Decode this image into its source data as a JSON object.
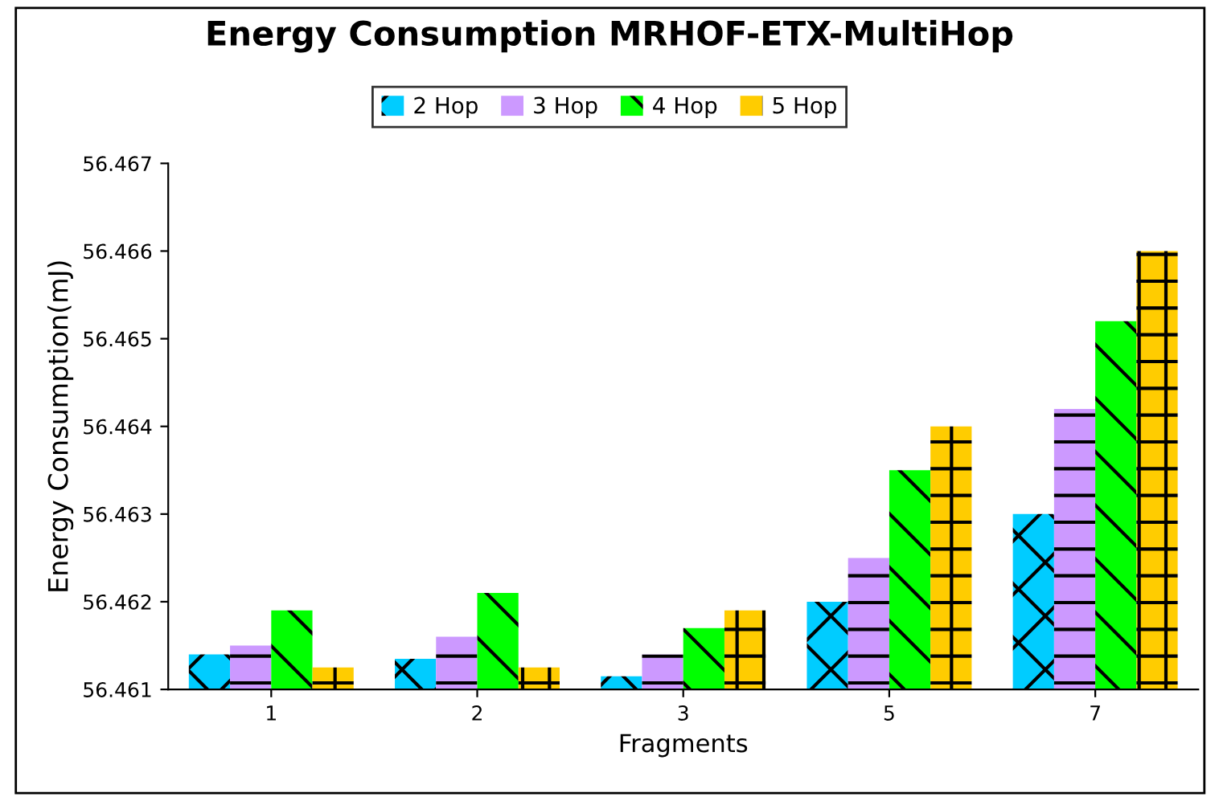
{
  "chart_data": {
    "type": "bar",
    "title": "Energy Consumption MRHOF-ETX-MultiHop",
    "xlabel": "Fragments",
    "ylabel": "Energy Consumption(mJ)",
    "categories": [
      "1",
      "2",
      "3",
      "5",
      "7"
    ],
    "series": [
      {
        "name": "2 Hop",
        "color": "#00ccff",
        "values": [
          56.4614,
          56.46135,
          56.46115,
          56.462,
          56.463
        ]
      },
      {
        "name": "3 Hop",
        "color": "#cc99ff",
        "values": [
          56.4615,
          56.4616,
          56.4614,
          56.4625,
          56.4642
        ]
      },
      {
        "name": "4 Hop",
        "color": "#00ff00",
        "values": [
          56.4619,
          56.4621,
          56.4617,
          56.4635,
          56.4652
        ]
      },
      {
        "name": "5 Hop",
        "color": "#ffcc00",
        "values": [
          56.46125,
          56.46125,
          56.4619,
          56.464,
          56.466
        ]
      }
    ],
    "ylim": [
      56.461,
      56.467
    ],
    "yticks": [
      {
        "value": 56.461,
        "label": "56.461"
      },
      {
        "value": 56.462,
        "label": "56.462"
      },
      {
        "value": 56.463,
        "label": "56.463"
      },
      {
        "value": 56.464,
        "label": "56.464"
      },
      {
        "value": 56.465,
        "label": "56.465"
      },
      {
        "value": 56.466,
        "label": "56.466"
      },
      {
        "value": 56.467,
        "label": "56.467"
      }
    ],
    "grid": false,
    "legend": "top"
  }
}
